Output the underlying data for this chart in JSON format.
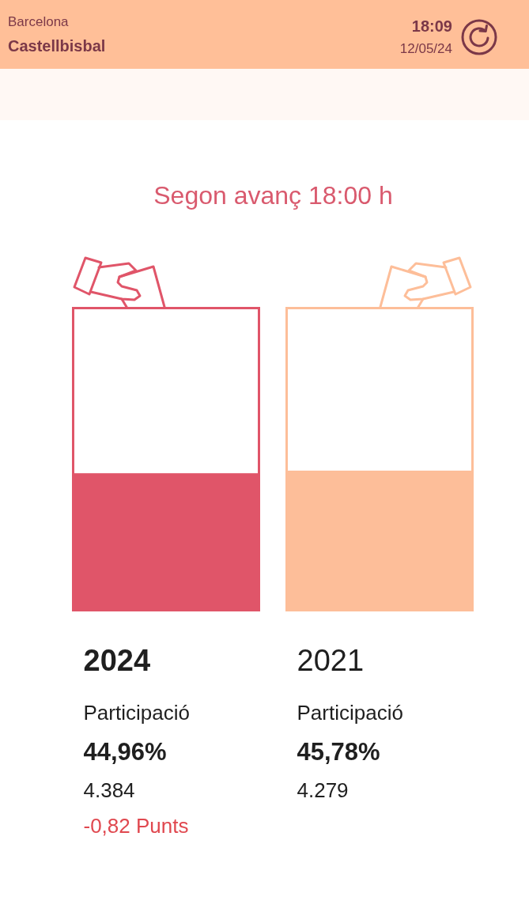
{
  "chart_data": {
    "type": "bar",
    "title": "Segon avanç 18:00 h",
    "stacked": true,
    "categories": [
      "2024",
      "2021"
    ],
    "series": [
      {
        "name": "Participació",
        "colors": [
          "#e05569",
          "#fdbe99"
        ],
        "values": [
          44.96,
          45.78
        ],
        "value_labels": [
          "44,96%",
          "45,78%"
        ]
      },
      {
        "colors": [
          "#ffffff",
          "#ffffff"
        ],
        "values": [
          55.04,
          54.22
        ]
      }
    ],
    "tick_labels": "x",
    "annotations": [
      "Barcelona",
      "Castellbisbal",
      "18:09",
      "12/05/24",
      "4.384",
      "4.279",
      "-0,82 Punts"
    ]
  }
}
